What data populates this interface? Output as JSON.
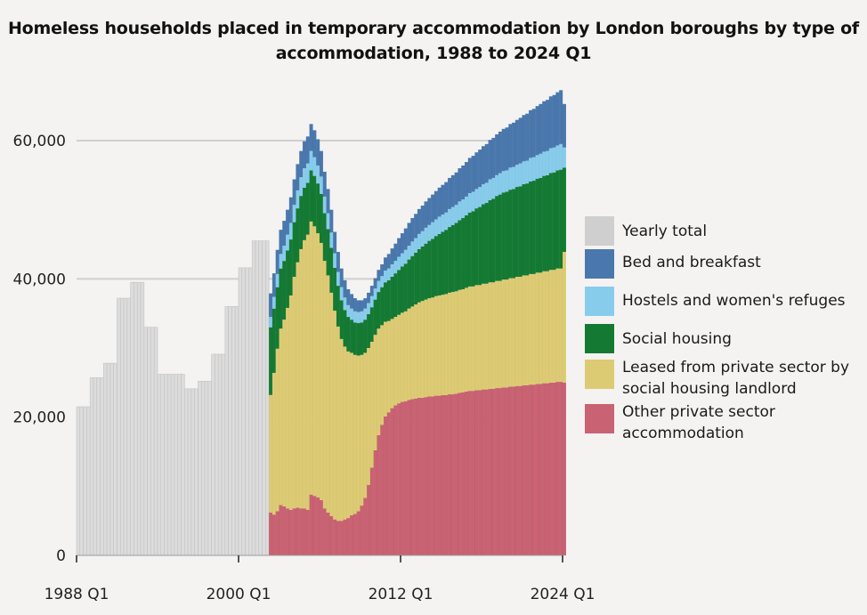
{
  "chart_data": {
    "type": "bar",
    "stacked": true,
    "title": "Homeless households placed in temporary accommodation by London boroughs by type of accommodation, 1988 to 2024 Q1",
    "xlabel": "",
    "ylabel": "",
    "ylim": [
      0,
      66000
    ],
    "yticks": [
      0,
      20000,
      40000,
      60000
    ],
    "ytick_labels": [
      "0",
      "20,000",
      "40,000",
      "60,000"
    ],
    "xtick_labels": [
      "1988 Q1",
      "2000 Q1",
      "2012 Q1",
      "2024 Q1"
    ],
    "grid": true,
    "legend_position": "right",
    "yearly": {
      "name": "Yearly total",
      "color": "#cfcfcf",
      "years": [
        1988,
        1989,
        1990,
        1991,
        1992,
        1993,
        1994,
        1995,
        1996,
        1997,
        1998,
        1999,
        2000,
        2001,
        2002
      ],
      "values": [
        21500,
        25700,
        27800,
        37200,
        39500,
        33000,
        26200,
        26200,
        24100,
        25200,
        29100,
        36000,
        41600,
        45500,
        45500
      ]
    },
    "quarterly": {
      "start": "2002 Q2",
      "end": "2024 Q1",
      "other_private": [
        6200,
        5900,
        6400,
        7300,
        7100,
        6800,
        6600,
        6800,
        6900,
        6800,
        6800,
        6600,
        8800,
        8600,
        8400,
        8000,
        6800,
        6200,
        5700,
        5200,
        5000,
        5000,
        5200,
        5400,
        5800,
        6000,
        6400,
        7200,
        8300,
        10200,
        12700,
        15200,
        17400,
        18900,
        20100,
        20700,
        21300,
        21700,
        22000,
        22200,
        22300,
        22500,
        22600,
        22700,
        22800,
        22800,
        22900,
        23000,
        23000,
        23100,
        23100,
        23200,
        23200,
        23300,
        23300,
        23400,
        23500,
        23600,
        23700,
        23800,
        23800,
        23900,
        23900,
        24000,
        24000,
        24100,
        24100,
        24200,
        24200,
        24300,
        24300,
        24400,
        24400,
        24500,
        24500,
        24600,
        24600,
        24700,
        24700,
        24800,
        24800,
        24900,
        24900,
        25000,
        25000,
        25100,
        25100,
        25000
      ],
      "leased_social": [
        17000,
        20500,
        23500,
        25500,
        27000,
        29000,
        31000,
        33500,
        35500,
        37500,
        38800,
        39800,
        39500,
        39000,
        38200,
        37200,
        35800,
        34300,
        32300,
        30200,
        28100,
        26300,
        25000,
        24100,
        23500,
        23000,
        22500,
        21800,
        21000,
        19800,
        18200,
        16700,
        15400,
        14400,
        13700,
        13200,
        12900,
        12800,
        12800,
        12900,
        13000,
        13200,
        13400,
        13600,
        13800,
        14000,
        14100,
        14200,
        14300,
        14400,
        14500,
        14500,
        14600,
        14700,
        14800,
        14800,
        14900,
        14900,
        15000,
        15100,
        15100,
        15200,
        15200,
        15300,
        15300,
        15400,
        15400,
        15500,
        15500,
        15600,
        15600,
        15700,
        15700,
        15800,
        15800,
        15900,
        15900,
        16000,
        16000,
        16100,
        16100,
        16200,
        16200,
        16300,
        16300,
        16400,
        16400,
        18900
      ],
      "social_housing": [
        9800,
        9300,
        8900,
        8700,
        8500,
        8300,
        8100,
        7900,
        7800,
        7700,
        7600,
        7500,
        7400,
        7300,
        7200,
        7100,
        6900,
        6700,
        6500,
        6200,
        5900,
        5600,
        5300,
        5000,
        4800,
        4700,
        4700,
        4700,
        4800,
        4900,
        5000,
        5100,
        5300,
        5500,
        5700,
        5900,
        6100,
        6300,
        6500,
        6700,
        6900,
        7100,
        7300,
        7500,
        7700,
        7900,
        8100,
        8300,
        8500,
        8700,
        8900,
        9100,
        9300,
        9500,
        9700,
        9900,
        10100,
        10300,
        10500,
        10700,
        10900,
        11100,
        11300,
        11500,
        11700,
        11900,
        12100,
        12300,
        12500,
        12600,
        12700,
        12800,
        12900,
        13000,
        13100,
        13200,
        13300,
        13400,
        13500,
        13600,
        13700,
        13800,
        13900,
        14000,
        14100,
        14200,
        14300,
        12200
      ],
      "hostels": [
        1500,
        1700,
        1900,
        2100,
        2200,
        2300,
        2400,
        2500,
        2600,
        2700,
        2800,
        2800,
        2800,
        2700,
        2600,
        2500,
        2400,
        2300,
        2200,
        2100,
        2000,
        1900,
        1800,
        1700,
        1600,
        1600,
        1600,
        1600,
        1600,
        1600,
        1600,
        1600,
        1600,
        1600,
        1700,
        1700,
        1800,
        1800,
        1900,
        1900,
        2000,
        2000,
        2100,
        2100,
        2200,
        2200,
        2300,
        2300,
        2400,
        2400,
        2500,
        2500,
        2500,
        2600,
        2600,
        2600,
        2700,
        2700,
        2700,
        2800,
        2800,
        2800,
        2900,
        2900,
        2900,
        3000,
        3000,
        3000,
        3100,
        3100,
        3100,
        3200,
        3200,
        3200,
        3300,
        3300,
        3300,
        3400,
        3400,
        3400,
        3500,
        3500,
        3500,
        3600,
        3600,
        3600,
        3700,
        2900
      ],
      "bed_breakfast": [
        3400,
        3400,
        3500,
        3500,
        3600,
        3600,
        3700,
        3700,
        3800,
        3800,
        3900,
        3900,
        3900,
        3900,
        3800,
        3700,
        3600,
        3500,
        3300,
        3100,
        2900,
        2700,
        2500,
        2300,
        2100,
        1900,
        1700,
        1600,
        1500,
        1500,
        1500,
        1500,
        1600,
        1700,
        1900,
        2100,
        2300,
        2500,
        2700,
        2900,
        3100,
        3300,
        3400,
        3500,
        3600,
        3700,
        3800,
        3900,
        4000,
        4100,
        4200,
        4300,
        4400,
        4500,
        4600,
        4700,
        4800,
        4900,
        5000,
        5100,
        5200,
        5300,
        5400,
        5500,
        5600,
        5700,
        5800,
        5900,
        6000,
        6100,
        6200,
        6300,
        6400,
        6500,
        6600,
        6700,
        6800,
        6900,
        7000,
        7100,
        7200,
        7300,
        7400,
        7500,
        7600,
        7700,
        7800,
        6300
      ]
    },
    "series": [
      {
        "name": "Bed and breakfast",
        "key": "bed_breakfast",
        "color": "#4a78ad"
      },
      {
        "name": "Hostels and women's refuges",
        "key": "hostels",
        "color": "#88ccec"
      },
      {
        "name": "Social housing",
        "key": "social_housing",
        "color": "#147a33"
      },
      {
        "name": "Leased from private sector by\nsocial housing landlord",
        "key": "leased_social",
        "color": "#ddcb74"
      },
      {
        "name": "Other private sector\naccommodation",
        "key": "other_private",
        "color": "#c96272"
      }
    ]
  }
}
